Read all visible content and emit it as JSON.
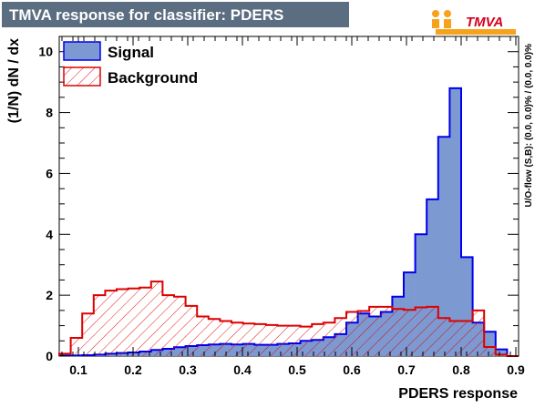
{
  "chart_data": {
    "type": "histogram",
    "title": "TMVA response for classifier: PDERS",
    "xlabel": "PDERS response",
    "ylabel": "(1/N) dN / dx",
    "xlim": [
      0.065,
      0.905
    ],
    "ylim": [
      0,
      10.5
    ],
    "x_ticks": [
      0.1,
      0.2,
      0.3,
      0.4,
      0.5,
      0.6,
      0.7,
      0.8,
      0.9
    ],
    "x_tick_labels": [
      "0.1",
      "0.2",
      "0.3",
      "0.4",
      "0.5",
      "0.6",
      "0.7",
      "0.8",
      "0.9"
    ],
    "y_ticks": [
      0,
      2,
      4,
      6,
      8,
      10
    ],
    "y_tick_labels": [
      "0",
      "2",
      "4",
      "6",
      "8",
      "10"
    ],
    "bin_edges_min": 0.065,
    "bin_width": 0.021,
    "legend_position": "top-left",
    "series": [
      {
        "name": "Signal",
        "style": "filled",
        "fill_color": "#7d99d1",
        "line_color": "#0000ee",
        "values": [
          0.02,
          0.02,
          0.03,
          0.05,
          0.08,
          0.1,
          0.12,
          0.15,
          0.2,
          0.24,
          0.29,
          0.33,
          0.36,
          0.38,
          0.4,
          0.38,
          0.4,
          0.37,
          0.37,
          0.4,
          0.42,
          0.5,
          0.53,
          0.62,
          0.72,
          1.1,
          1.4,
          1.3,
          1.45,
          1.95,
          2.75,
          4.0,
          5.15,
          7.2,
          8.8,
          3.25,
          1.1,
          0.8,
          0.22,
          0.0
        ]
      },
      {
        "name": "Background",
        "style": "hatched",
        "fill_color": "#dd0000",
        "line_color": "#dd0000",
        "values": [
          0.08,
          0.6,
          1.4,
          2.0,
          2.15,
          2.2,
          2.22,
          2.25,
          2.45,
          2.0,
          1.95,
          1.65,
          1.3,
          1.22,
          1.15,
          1.1,
          1.07,
          1.05,
          1.02,
          1.0,
          1.0,
          0.97,
          1.05,
          1.1,
          1.25,
          1.45,
          1.48,
          1.62,
          1.62,
          1.55,
          1.52,
          1.6,
          1.62,
          1.25,
          1.15,
          1.15,
          1.5,
          0.3,
          0.05,
          0.0
        ]
      }
    ],
    "overflow_label": "U/O-flow (S,B): (0.0, 0.0)% / (0.0, 0.0)%"
  },
  "logo": {
    "text": "TMVA",
    "brand_color": "#f7a21b",
    "text_color": "#d6001c"
  },
  "colors": {
    "title_bar": "#5b6d80",
    "frame": "#000000"
  }
}
